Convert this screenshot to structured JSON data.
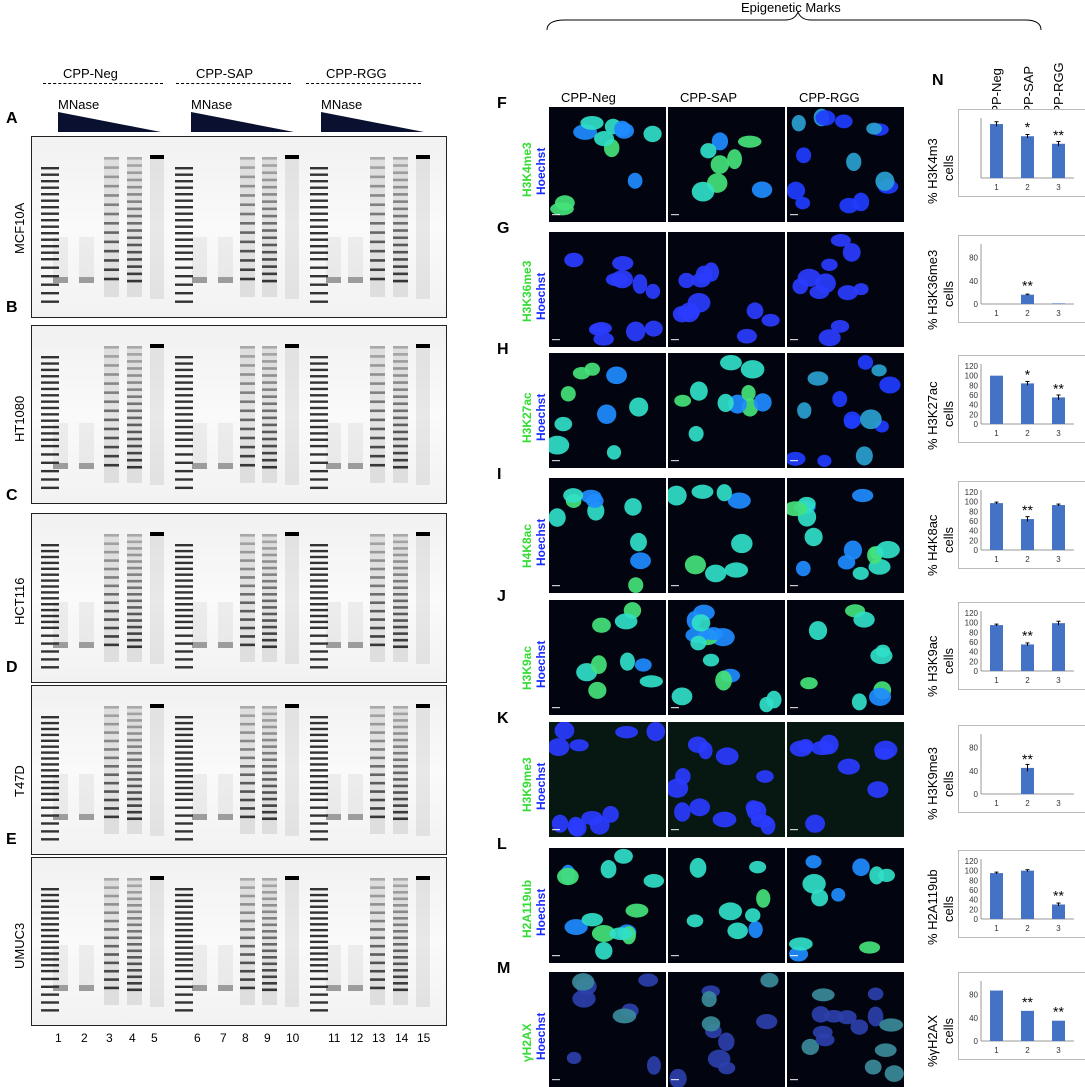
{
  "header": {
    "epigenetic_title": "Epigenetic Marks"
  },
  "gel_section": {
    "groups": [
      "CPP-Neg",
      "CPP-SAP",
      "CPP-RGG"
    ],
    "mnase_label": "MNase",
    "lane_numbers": [
      "1",
      "2",
      "3",
      "4",
      "5",
      "6",
      "7",
      "8",
      "9",
      "10",
      "11",
      "12",
      "13",
      "14",
      "15"
    ],
    "panels": [
      {
        "letter": "A",
        "cell_line": "MCF10A"
      },
      {
        "letter": "B",
        "cell_line": "HT1080"
      },
      {
        "letter": "C",
        "cell_line": "HCT116"
      },
      {
        "letter": "D",
        "cell_line": "T47D"
      },
      {
        "letter": "E",
        "cell_line": "UMUC3"
      }
    ]
  },
  "micro_section": {
    "columns": [
      "CPP-Neg",
      "CPP-SAP",
      "CPP-RGG"
    ],
    "stain_label": "Hoechst",
    "rows": [
      {
        "letter": "F",
        "mark": "H3K4me3"
      },
      {
        "letter": "G",
        "mark": "H3K36me3"
      },
      {
        "letter": "H",
        "mark": "H3K27ac"
      },
      {
        "letter": "I",
        "mark": "H4K8ac"
      },
      {
        "letter": "J",
        "mark": "H3K9ac"
      },
      {
        "letter": "K",
        "mark": "H3K9me3"
      },
      {
        "letter": "L",
        "mark": "H2A119ub"
      },
      {
        "letter": "M",
        "mark": "γH2AX"
      }
    ]
  },
  "charts_section": {
    "letter": "N",
    "column_headers": [
      "CPP-Neg",
      "CPP-SAP",
      "CPP-RGG"
    ],
    "bar_color": "#4472c4",
    "cells_label": "cells"
  },
  "chart_data": [
    {
      "type": "bar",
      "ylabel": "% H3K4m3",
      "categories": [
        "1",
        "2",
        "3"
      ],
      "values": [
        93,
        72,
        59
      ],
      "errors": [
        4,
        3,
        4
      ],
      "sig": [
        "",
        "*",
        "**"
      ],
      "ylim": [
        0,
        100
      ],
      "ticks": []
    },
    {
      "type": "bar",
      "ylabel": "% H3K36me3",
      "categories": [
        "1",
        "2",
        "3"
      ],
      "values": [
        0,
        16,
        1
      ],
      "errors": [
        0,
        1,
        0
      ],
      "sig": [
        "",
        "**",
        ""
      ],
      "ylim": [
        0,
        100
      ],
      "ticks": [
        "0",
        "40",
        "80"
      ]
    },
    {
      "type": "bar",
      "ylabel": "% H3K27ac",
      "categories": [
        "1",
        "2",
        "3"
      ],
      "values": [
        100,
        84,
        55
      ],
      "errors": [
        0,
        4,
        5
      ],
      "sig": [
        "",
        "*",
        "**"
      ],
      "ylim": [
        0,
        120
      ],
      "ticks": [
        "0",
        "20",
        "40",
        "60",
        "80",
        "100",
        "120"
      ]
    },
    {
      "type": "bar",
      "ylabel": "% H4K8ac",
      "categories": [
        "1",
        "2",
        "3"
      ],
      "values": [
        97,
        64,
        93
      ],
      "errors": [
        2,
        5,
        2
      ],
      "sig": [
        "",
        "**",
        ""
      ],
      "ylim": [
        0,
        120
      ],
      "ticks": [
        "0",
        "20",
        "40",
        "60",
        "80",
        "100",
        "120"
      ]
    },
    {
      "type": "bar",
      "ylabel": "% H3K9ac",
      "categories": [
        "1",
        "2",
        "3"
      ],
      "values": [
        95,
        55,
        99
      ],
      "errors": [
        2,
        3,
        4
      ],
      "sig": [
        "",
        "**",
        ""
      ],
      "ylim": [
        0,
        120
      ],
      "ticks": [
        "0",
        "20",
        "40",
        "60",
        "80",
        "100",
        "120"
      ]
    },
    {
      "type": "bar",
      "ylabel": "% H3K9me3",
      "categories": [
        "1",
        "2",
        "3"
      ],
      "values": [
        0,
        45,
        0
      ],
      "errors": [
        0,
        6,
        0
      ],
      "sig": [
        "",
        "**",
        ""
      ],
      "ylim": [
        0,
        100
      ],
      "ticks": [
        "0",
        "40",
        "80"
      ]
    },
    {
      "type": "bar",
      "ylabel": "% H2A119ub",
      "categories": [
        "1",
        "2",
        "3"
      ],
      "values": [
        95,
        100,
        30
      ],
      "errors": [
        2,
        2,
        3
      ],
      "sig": [
        "",
        "",
        "**"
      ],
      "ylim": [
        0,
        120
      ],
      "ticks": [
        "0",
        "20",
        "40",
        "60",
        "80",
        "100",
        "120"
      ]
    },
    {
      "type": "bar",
      "ylabel": "%γH2AX",
      "categories": [
        "1",
        "2",
        "3"
      ],
      "values": [
        87,
        52,
        35
      ],
      "errors": [
        0,
        0,
        0
      ],
      "sig": [
        "",
        "**",
        "**"
      ],
      "ylim": [
        0,
        100
      ],
      "ticks": [
        "0",
        "40",
        "80"
      ]
    }
  ]
}
